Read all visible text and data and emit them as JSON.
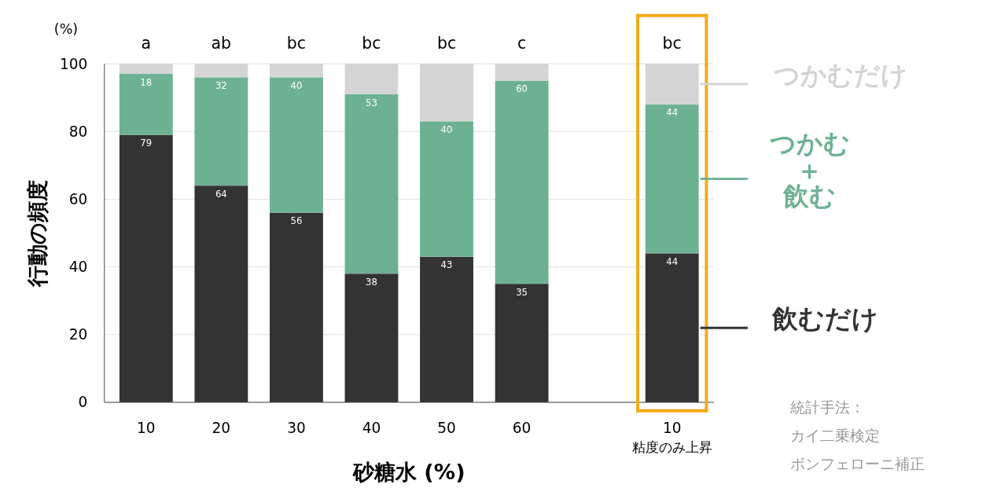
{
  "chart_data": {
    "type": "bar",
    "stacked": true,
    "xlabel": "砂糖水 (%)",
    "ylabel": "行動の頻度",
    "categories": [
      "10",
      "20",
      "30",
      "40",
      "50",
      "60",
      null,
      "10"
    ],
    "series": [
      {
        "name": "飲むだけ",
        "color": "#333333",
        "values": [
          79,
          64,
          56,
          38,
          43,
          35,
          null,
          44
        ],
        "value_labels": [
          "79",
          "64",
          "56",
          "38",
          "43",
          "35",
          null,
          "44"
        ]
      },
      {
        "name": "つかむ＋飲む",
        "color": "#6db193",
        "values": [
          18,
          32,
          40,
          53,
          40,
          60,
          null,
          44
        ],
        "value_labels": [
          "18",
          "32",
          "40",
          "53",
          "40",
          "60",
          null,
          "44"
        ]
      },
      {
        "name": "つかむだけ",
        "color": "#d4d4d4",
        "values": [
          3,
          4,
          4,
          9,
          17,
          5,
          null,
          12
        ]
      }
    ],
    "ylim": [
      0,
      100
    ],
    "yticks": [
      0,
      20,
      40,
      60,
      80,
      100
    ],
    "grid": "y",
    "legend": "right",
    "annotations": [
      "a",
      "ab",
      "bc",
      "bc",
      "bc",
      "c",
      "bc",
      "粘度のみ上昇",
      "(%)",
      "統計手法：",
      "カイ二乗検定",
      "ボンフェローニ補正"
    ]
  }
}
